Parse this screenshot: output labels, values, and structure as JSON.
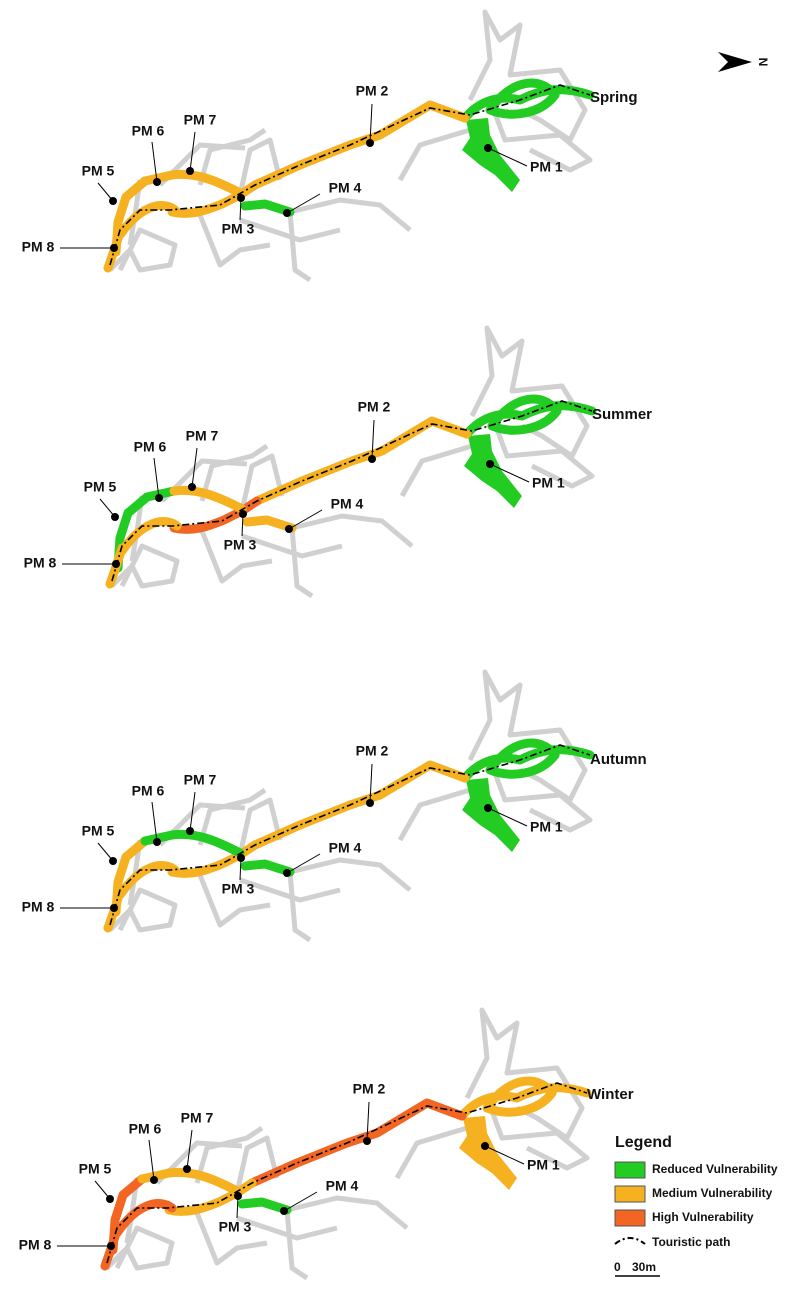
{
  "north": "N",
  "panels": [
    {
      "season": "Spring",
      "points": [
        {
          "label": "PM 1",
          "color": "#22cc22"
        },
        {
          "label": "PM 2",
          "color": "#f5b120"
        },
        {
          "label": "PM 3",
          "color": "#f5b120"
        },
        {
          "label": "PM 4",
          "color": "#22cc22"
        },
        {
          "label": "PM 5",
          "color": "#f5b120"
        },
        {
          "label": "PM 6",
          "color": "#f5b120"
        },
        {
          "label": "PM 7",
          "color": "#f5b120"
        },
        {
          "label": "PM 8",
          "color": "#f5b120"
        }
      ]
    },
    {
      "season": "Summer",
      "points": [
        {
          "label": "PM 1",
          "color": "#22cc22"
        },
        {
          "label": "PM 2",
          "color": "#f5b120"
        },
        {
          "label": "PM 3",
          "color": "#f26522"
        },
        {
          "label": "PM 4",
          "color": "#f5b120"
        },
        {
          "label": "PM 5",
          "color": "#22cc22"
        },
        {
          "label": "PM 6",
          "color": "#22cc22"
        },
        {
          "label": "PM 7",
          "color": "#f5b120"
        },
        {
          "label": "PM 8",
          "color": "#f5b120"
        }
      ]
    },
    {
      "season": "Autumn",
      "points": [
        {
          "label": "PM 1",
          "color": "#22cc22"
        },
        {
          "label": "PM 2",
          "color": "#f5b120"
        },
        {
          "label": "PM 3",
          "color": "#f5b120"
        },
        {
          "label": "PM 4",
          "color": "#22cc22"
        },
        {
          "label": "PM 5",
          "color": "#f5b120"
        },
        {
          "label": "PM 6",
          "color": "#22cc22"
        },
        {
          "label": "PM 7",
          "color": "#22cc22"
        },
        {
          "label": "PM 8",
          "color": "#f5b120"
        }
      ]
    },
    {
      "season": "Winter",
      "points": [
        {
          "label": "PM 1",
          "color": "#f5b120"
        },
        {
          "label": "PM 2",
          "color": "#f26522"
        },
        {
          "label": "PM 3",
          "color": "#f5b120"
        },
        {
          "label": "PM 4",
          "color": "#22cc22"
        },
        {
          "label": "PM 5",
          "color": "#f26522"
        },
        {
          "label": "PM 6",
          "color": "#f5b120"
        },
        {
          "label": "PM 7",
          "color": "#f5b120"
        },
        {
          "label": "PM 8",
          "color": "#f26522"
        }
      ]
    }
  ],
  "legend": {
    "title": "Legend",
    "items": [
      {
        "label": "Reduced Vulnerability",
        "color": "#22cc22"
      },
      {
        "label": "Medium Vulnerability",
        "color": "#f5b120"
      },
      {
        "label": "High Vulnerability",
        "color": "#f26522"
      }
    ],
    "path": "Touristic path"
  },
  "scale": {
    "start": "0",
    "end": "30m"
  }
}
